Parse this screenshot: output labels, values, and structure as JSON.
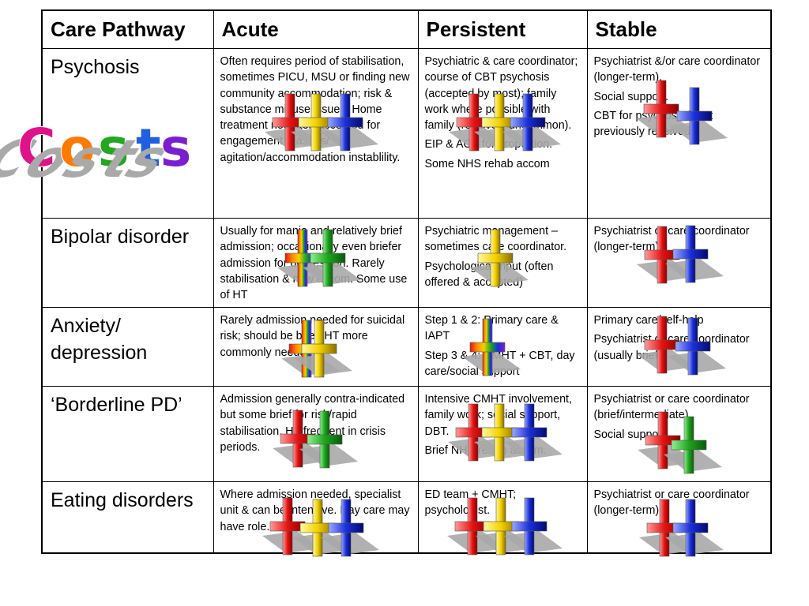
{
  "table": {
    "headers": [
      "Care Pathway",
      "Acute",
      "Persistent",
      "Stable"
    ],
    "rows": [
      {
        "pathway": [
          "Psychosis"
        ],
        "acute": [
          "Often requires period of stabilisation, sometimes PICU, MSU or finding new community accommodation; risk & substance misuse issues. Home treatment not often accepted for engagement reasons/ agitation/accommodation instablility."
        ],
        "persistent": [
          "Psychiatric & care coordinator; course of CBT psychosis (accepted by most); family work where possible with family (relatively uncommon).",
          "EIP & AOT for proportion.",
          "Some NHS rehab accom"
        ],
        "stable": [
          "Psychiatrist &/or care coordinator (longer-term).",
          "Social support.",
          "CBT for psychosis if not previously received."
        ]
      },
      {
        "pathway": [
          "Bipolar disorder"
        ],
        "acute": [
          "Usually for mania and relatively brief admission; occasionally even briefer admission for depression. Rarely stabilisation & new accom. Some use of HT"
        ],
        "persistent": [
          "Psychiatric management – sometimes care coordinator.",
          "Psychological input (often offered & accepted)"
        ],
        "stable": [
          "Psychiatrist or care coordinator (longer-term) ."
        ]
      },
      {
        "pathway": [
          "Anxiety/",
          "depression"
        ],
        "acute": [
          "Rarely admission needed for suicidal risk; should be brief. HT more commonly needed."
        ],
        "persistent": [
          "Step 1 & 2: Primary care & IAPT",
          "Step 3 & 4: CMHT + CBT, day care/social support"
        ],
        "stable": [
          "Primary care/self-help",
          "Psychiatrist or care coordinator (usually brief)."
        ]
      },
      {
        "pathway": [
          "‘Borderline PD’"
        ],
        "acute": [
          "Admission generally contra-indicated but some brief for risk/rapid stabilisation.  HT frequent in crisis periods."
        ],
        "persistent": [
          "Intensive CMHT involvement, family work; social support, DBT.",
          "Brief NHS rehab accom."
        ],
        "stable": [
          "Psychiatrist or care coordinator (brief/intermediate).",
          "Social support."
        ]
      },
      {
        "pathway": [
          "Eating disorders"
        ],
        "acute": [
          "Where admission needed, specialist unit & can be intensive. Day care may have role."
        ],
        "persistent": [
          "ED team + CMHT; psychologist."
        ],
        "stable": [
          "Psychiatrist or care coordinator (longer-term)."
        ]
      }
    ]
  },
  "overlay": {
    "title": "Costs",
    "title_colors": [
      "#e0128a",
      "#ff7a00",
      "#22a81e",
      "#2060e0",
      "#7a1fd0"
    ],
    "cross_icon": "rainbow-plus-cross-icon",
    "cross_colors": {
      "red": [
        "#ff9a9a",
        "#e51212",
        "#8a0000"
      ],
      "yellow": [
        "#fff7a0",
        "#f2d200",
        "#8a7000"
      ],
      "green": [
        "#8ff08f",
        "#1ea51e",
        "#0a5a0a"
      ],
      "blue": [
        "#9aa8ff",
        "#1a2fd8",
        "#050a70"
      ],
      "orange": [
        "#ffd080",
        "#ff8a00",
        "#8a4500"
      ],
      "purple": [
        "#d8a0ff",
        "#7a1fd0",
        "#380070"
      ],
      "rainbow": [
        "#e51212",
        "#ff8a00",
        "#f2d200",
        "#1ea51e",
        "#1a2fd8",
        "#7a1fd0"
      ]
    },
    "shadow_color": "#a9a9a9"
  }
}
